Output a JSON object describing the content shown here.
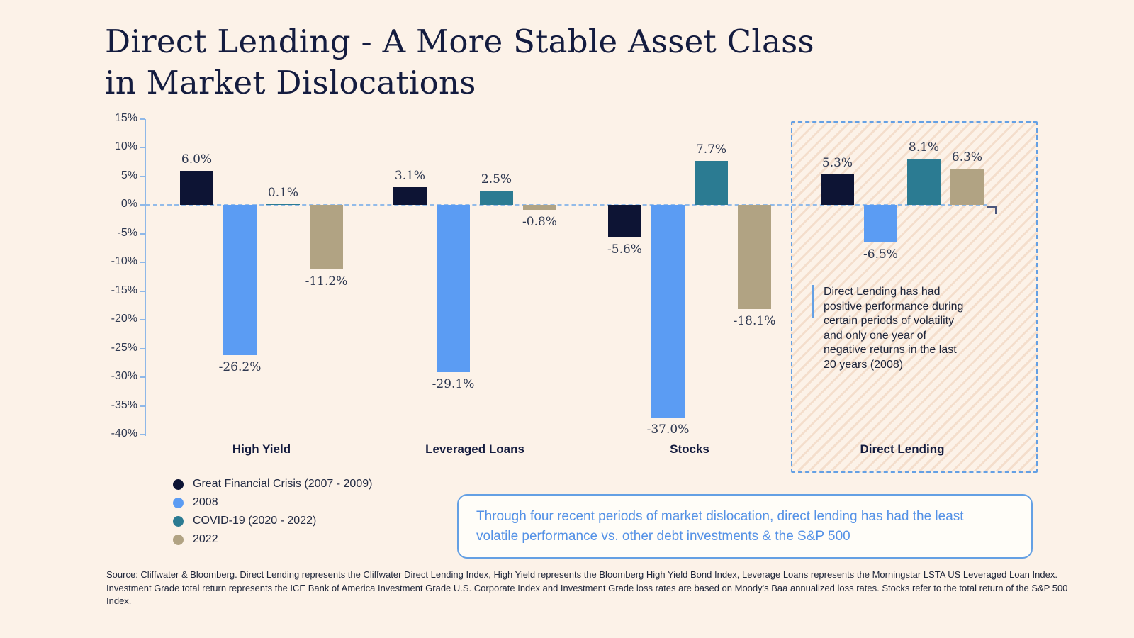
{
  "title": {
    "text": "Direct Lending - A More Stable Asset Class\nin Market Dislocations"
  },
  "chart_data": {
    "type": "bar",
    "title": "Direct Lending - A More Stable Asset Class in Market Dislocations",
    "categories": [
      "High Yield",
      "Leveraged Loans",
      "Stocks",
      "Direct Lending"
    ],
    "series": [
      {
        "name": "Great Financial Crisis (2007 - 2009)",
        "color": "#0d1434",
        "values": [
          6.0,
          3.1,
          -5.6,
          5.3
        ]
      },
      {
        "name": "2008",
        "color": "#5b9cf3",
        "values": [
          -26.2,
          -29.1,
          -37.0,
          -6.5
        ]
      },
      {
        "name": "COVID-19 (2020 - 2022)",
        "color": "#2b7b92",
        "values": [
          0.1,
          2.5,
          7.7,
          8.1
        ]
      },
      {
        "name": "2022",
        "color": "#b1a383",
        "values": [
          -11.2,
          -0.8,
          -18.1,
          6.3
        ]
      }
    ],
    "value_label_format": "{value}%",
    "ylim": [
      -40,
      15
    ],
    "ytick_values": [
      15,
      10,
      5,
      0,
      -5,
      -10,
      -15,
      -20,
      -25,
      -30,
      -35,
      -40
    ],
    "ytick_labels": [
      "15%",
      "10%",
      "5%",
      "0%",
      "-5%",
      "-10%",
      "-15%",
      "-20%",
      "-25%",
      "-30%",
      "-35%",
      "-40%"
    ],
    "zero_line": "dashed",
    "grid": false,
    "legend_position": "bottom-left"
  },
  "highlight": {
    "category": "Direct Lending",
    "annotation_text": "Direct Lending has had\npositive performance during\ncertain periods of volatility\nand only one year of\nnegative returns in the last\n20 years (2008)"
  },
  "callout": {
    "text": "Through four recent periods of market dislocation, direct lending has had the least volatile performance vs. other debt investments & the S&P 500"
  },
  "source": {
    "text": "Source: Cliffwater & Bloomberg. Direct Lending represents the Cliffwater Direct Lending Index, High Yield represents the Bloomberg High Yield Bond Index, Leverage Loans represents the Morningstar LSTA US Leveraged Loan Index.\nInvestment Grade total return represents the ICE Bank of America Investment Grade U.S. Corporate Index and Investment Grade loss rates are based on Moody's Baa annualized loss rates. Stocks refer to the total return of the S&P 500 Index."
  },
  "colors": {
    "background": "#fcf2e8",
    "axis_blue": "#8fb8e8",
    "accent_blue": "#64a0e4",
    "callout_text": "#5491e6",
    "title_text": "#141c3f"
  }
}
